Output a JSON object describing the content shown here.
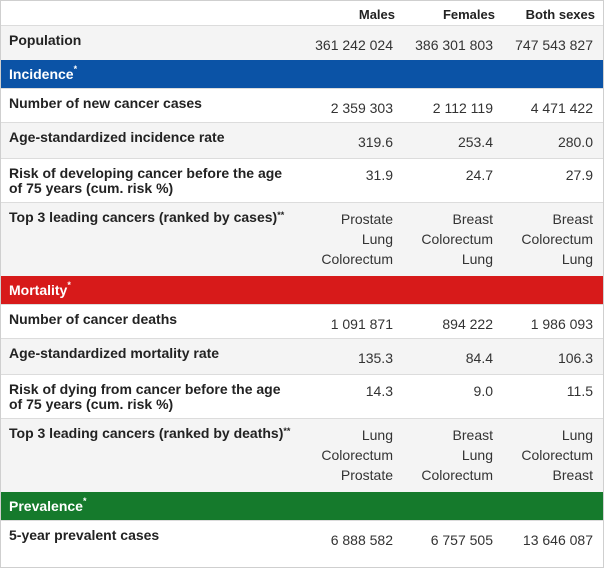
{
  "columns": [
    "Males",
    "Females",
    "Both sexes"
  ],
  "population": {
    "label": "Population",
    "values": [
      "361 242 024",
      "386 301 803",
      "747 543 827"
    ]
  },
  "sections": {
    "incidence": {
      "title": "Incidence",
      "mark": "*",
      "color": "#0b53a6",
      "rows": [
        {
          "label": "Number of new cancer cases",
          "values": [
            "2 359 303",
            "2 112 119",
            "4 471 422"
          ]
        },
        {
          "label": "Age-standardized incidence rate",
          "values": [
            "319.6",
            "253.4",
            "280.0"
          ]
        },
        {
          "label": "Risk of developing cancer before the age of 75 years (cum. risk %)",
          "values": [
            "31.9",
            "24.7",
            "27.9"
          ]
        },
        {
          "label": "Top 3 leading cancers (ranked by cases)",
          "mark": "**",
          "lists": [
            [
              "Prostate",
              "Lung",
              "Colorectum"
            ],
            [
              "Breast",
              "Colorectum",
              "Lung"
            ],
            [
              "Breast",
              "Colorectum",
              "Lung"
            ]
          ]
        }
      ]
    },
    "mortality": {
      "title": "Mortality",
      "mark": "*",
      "color": "#d71a1a",
      "rows": [
        {
          "label": "Number of cancer deaths",
          "values": [
            "1 091 871",
            "894 222",
            "1 986 093"
          ]
        },
        {
          "label": "Age-standardized mortality rate",
          "values": [
            "135.3",
            "84.4",
            "106.3"
          ]
        },
        {
          "label": "Risk of dying from cancer before the age of 75 years (cum. risk %)",
          "values": [
            "14.3",
            "9.0",
            "11.5"
          ]
        },
        {
          "label": "Top 3 leading cancers (ranked by deaths)",
          "mark": "**",
          "lists": [
            [
              "Lung",
              "Colorectum",
              "Prostate"
            ],
            [
              "Breast",
              "Lung",
              "Colorectum"
            ],
            [
              "Lung",
              "Colorectum",
              "Breast"
            ]
          ]
        }
      ]
    },
    "prevalence": {
      "title": "Prevalence",
      "mark": "*",
      "color": "#157a2c",
      "rows": [
        {
          "label": "5-year prevalent cases",
          "values": [
            "6 888 582",
            "6 757 505",
            "13 646 087"
          ]
        }
      ]
    }
  }
}
